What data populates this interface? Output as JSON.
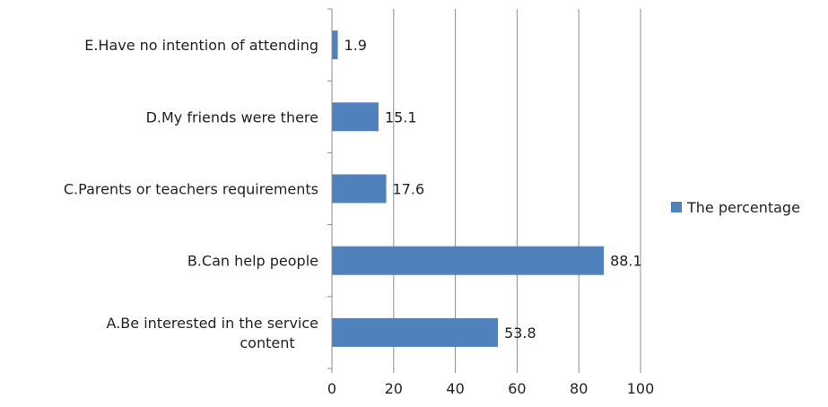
{
  "chart_data": {
    "type": "bar",
    "orientation": "horizontal",
    "title": "",
    "xlabel": "",
    "ylabel": "",
    "categories": [
      "E.Have no intention of attending",
      "D.My friends were there",
      "C.Parents or teachers requirements",
      "B.Can help people",
      "A.Be interested in the service content"
    ],
    "category_lines": [
      [
        "E.Have no intention of attending"
      ],
      [
        "D.My friends were there"
      ],
      [
        "C.Parents or teachers requirements"
      ],
      [
        "B.Can help people"
      ],
      [
        "A.Be interested in the service",
        "content"
      ]
    ],
    "series": [
      {
        "name": "The percentage",
        "color": "#4f81bd",
        "values": [
          1.9,
          15.1,
          17.6,
          88.1,
          53.8
        ]
      }
    ],
    "data_labels": [
      "1.9",
      "15.1",
      "17.6",
      "88.1",
      "53.8"
    ],
    "xlim": [
      0,
      100
    ],
    "xticks": [
      0,
      20,
      40,
      60,
      80,
      100
    ],
    "grid": "vertical",
    "legend": "right"
  }
}
